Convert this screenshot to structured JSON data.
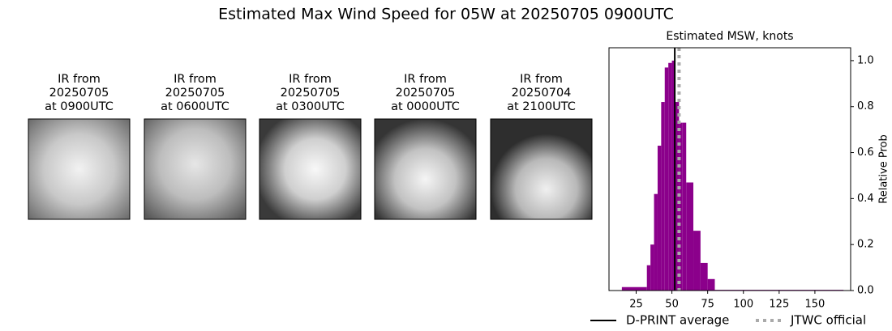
{
  "title": "Estimated Max Wind Speed for 05W at 20250705 0900UTC",
  "panels": [
    {
      "lines": [
        "IR from",
        "20250705",
        "at 0900UTC"
      ]
    },
    {
      "lines": [
        "IR from",
        "20250705",
        "at 0600UTC"
      ]
    },
    {
      "lines": [
        "IR from",
        "20250705",
        "at 0300UTC"
      ]
    },
    {
      "lines": [
        "IR from",
        "20250705",
        "at 0000UTC"
      ]
    },
    {
      "lines": [
        "IR from",
        "20250704",
        "at 2100UTC"
      ]
    }
  ],
  "chart_data": {
    "type": "histogram",
    "title": "Estimated MSW, knots",
    "ylabel": "Relative Prob",
    "color": "#8b008b",
    "bins": [
      15,
      32.5,
      35,
      37.5,
      40,
      42.5,
      45,
      47.5,
      50,
      52.5,
      55,
      57.5,
      60,
      65,
      70,
      75,
      80,
      170
    ],
    "values": [
      0.015,
      0.11,
      0.2,
      0.42,
      0.63,
      0.82,
      0.97,
      0.99,
      1.0,
      0.82,
      0.73,
      0.73,
      0.47,
      0.26,
      0.12,
      0.05,
      0.003
    ],
    "xlim": [
      6,
      175
    ],
    "ylim": [
      0,
      1.056
    ],
    "xticks": [
      25,
      50,
      75,
      100,
      125,
      150
    ],
    "yticks": [
      {
        "value": 0,
        "label": "0.0"
      },
      {
        "value": 0.2,
        "label": "0.2"
      },
      {
        "value": 0.4,
        "label": "0.4"
      },
      {
        "value": 0.6,
        "label": "0.6"
      },
      {
        "value": 0.8,
        "label": "0.8"
      },
      {
        "value": 1.0,
        "label": "1.0"
      }
    ],
    "lines": [
      {
        "name": "D-PRINT average",
        "value": 52,
        "color": "#000000",
        "style": "solid"
      },
      {
        "name": "JTWC official",
        "value": 55,
        "color": "#aaaaaa",
        "style": "dotted"
      }
    ]
  }
}
